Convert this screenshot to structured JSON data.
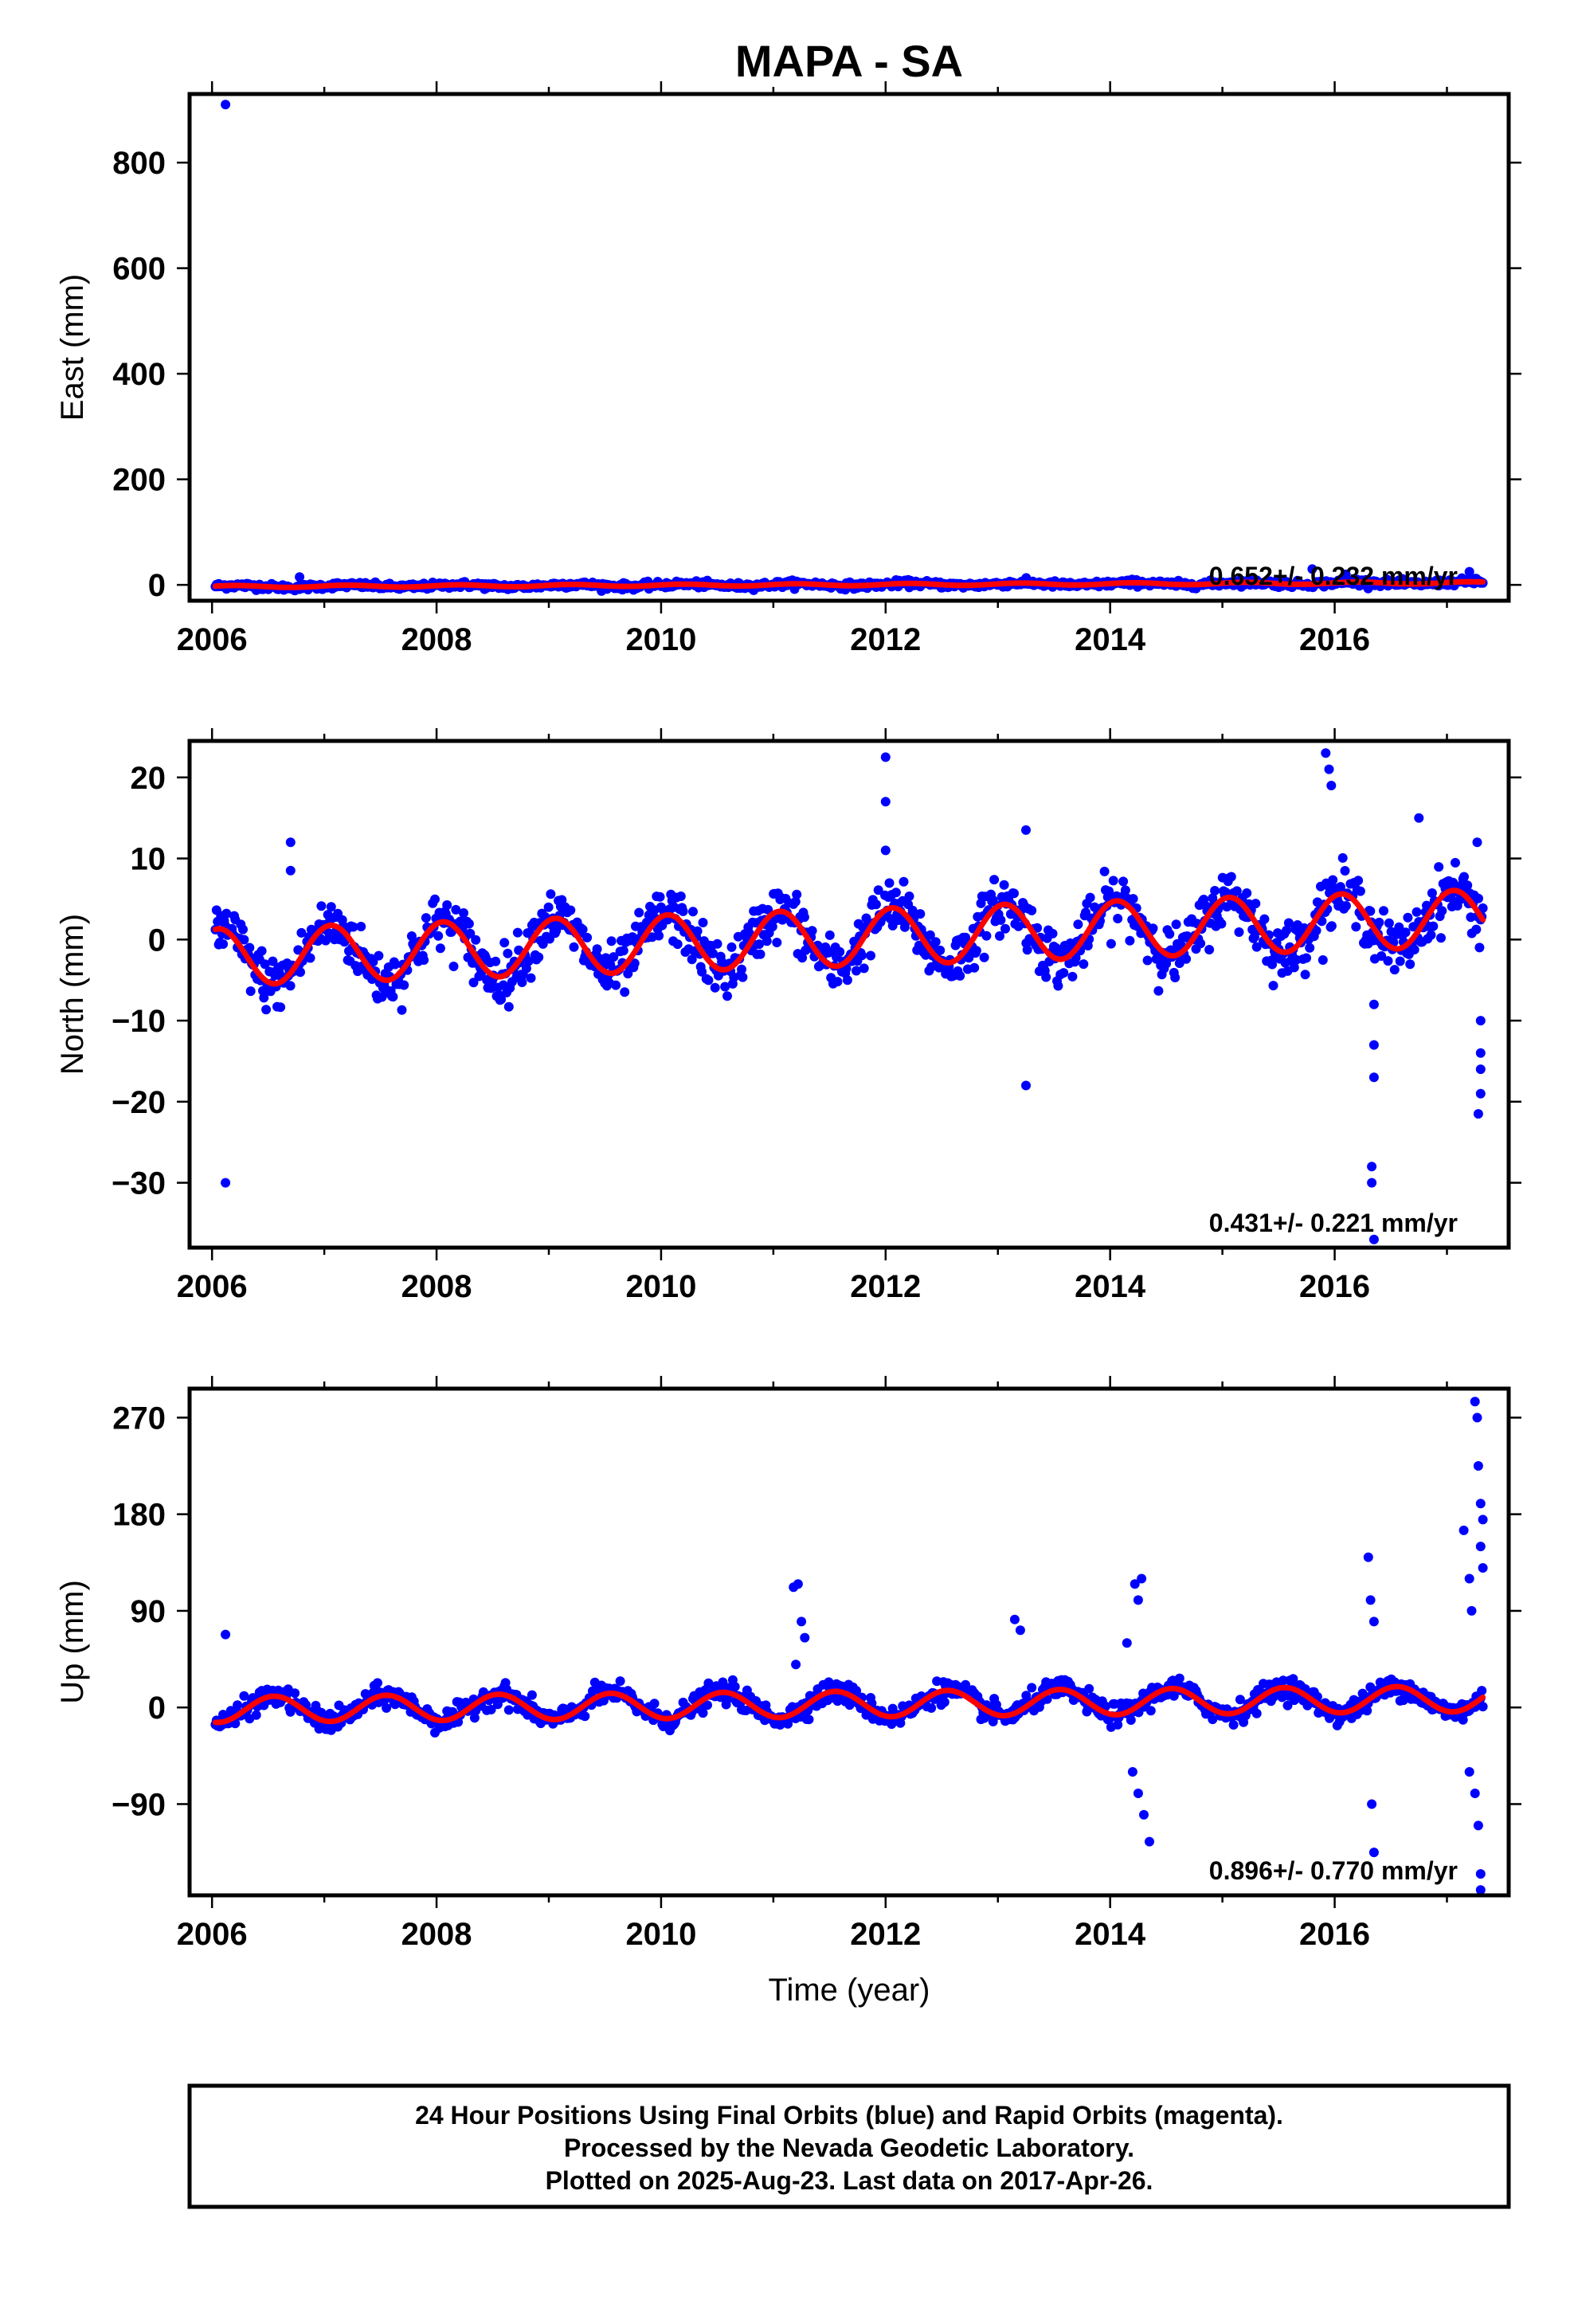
{
  "title": "MAPA - SA",
  "footer": {
    "lines": [
      "24 Hour Positions Using Final Orbits (blue) and Rapid Orbits (magenta).",
      "Processed by the Nevada Geodetic Laboratory.",
      "Plotted on 2025-Aug-23. Last data on 2017-Apr-26."
    ]
  },
  "colors": {
    "final_orbit_points": "#0000ff",
    "model_fit": "#ff0000",
    "frame": "#000000"
  },
  "chart_data": [
    {
      "type": "scatter",
      "name": "east",
      "ylabel": "East (mm)",
      "xlabel": "",
      "xlim": [
        2005.8,
        2017.55
      ],
      "ylim": [
        -30,
        930
      ],
      "xticks": [
        2006,
        2008,
        2010,
        2012,
        2014,
        2016
      ],
      "yticks": [
        0,
        200,
        400,
        600,
        800
      ],
      "rate_label": "0.652+/- 0.232 mm/yr",
      "legend": "none",
      "grid": false,
      "outliers": [
        [
          2006.12,
          910
        ],
        [
          2006.78,
          15
        ],
        [
          2015.8,
          30
        ],
        [
          2016.1,
          20
        ],
        [
          2017.2,
          25
        ]
      ],
      "model": {
        "offset": -3.3,
        "rate": 0.652,
        "t0": 2006.0,
        "amp": 2.0,
        "phase": 0.3
      },
      "noise_mm": 3,
      "x_range": [
        2006.03,
        2017.32
      ]
    },
    {
      "type": "scatter",
      "name": "north",
      "ylabel": "North (mm)",
      "xlabel": "",
      "xlim": [
        2005.8,
        2017.55
      ],
      "ylim": [
        -38,
        24.5
      ],
      "xticks": [
        2006,
        2008,
        2010,
        2012,
        2014,
        2016
      ],
      "yticks": [
        -30,
        -20,
        -10,
        0,
        10,
        20
      ],
      "rate_label": "0.431+/- 0.221 mm/yr",
      "legend": "none",
      "grid": false,
      "outliers": [
        [
          2006.12,
          -30
        ],
        [
          2006.7,
          12
        ],
        [
          2006.7,
          8.5
        ],
        [
          2012.0,
          22.5
        ],
        [
          2012.0,
          17
        ],
        [
          2012.0,
          11
        ],
        [
          2013.25,
          13.5
        ],
        [
          2013.25,
          -18
        ],
        [
          2015.92,
          23
        ],
        [
          2015.95,
          21
        ],
        [
          2015.97,
          19
        ],
        [
          2016.35,
          -8
        ],
        [
          2016.35,
          -13
        ],
        [
          2016.35,
          -17
        ],
        [
          2016.33,
          -28
        ],
        [
          2016.33,
          -30
        ],
        [
          2016.35,
          -37
        ],
        [
          2016.75,
          15
        ],
        [
          2017.27,
          12
        ],
        [
          2017.3,
          -10
        ],
        [
          2017.3,
          -14
        ],
        [
          2017.3,
          -16
        ],
        [
          2017.3,
          -19
        ],
        [
          2017.28,
          -21.5
        ]
      ],
      "model": {
        "offset": -2.2,
        "rate": 0.431,
        "t0": 2006.0,
        "amp": 3.5,
        "phase": 1.2
      },
      "noise_mm": 1.7,
      "x_range": [
        2006.03,
        2017.32
      ]
    },
    {
      "type": "scatter",
      "name": "up",
      "ylabel": "Up (mm)",
      "xlabel": "Time (year)",
      "xlim": [
        2005.8,
        2017.55
      ],
      "ylim": [
        -175,
        297
      ],
      "xticks": [
        2006,
        2008,
        2010,
        2012,
        2014,
        2016
      ],
      "yticks": [
        -90,
        0,
        90,
        180,
        270
      ],
      "rate_label": "0.896+/- 0.770 mm/yr",
      "legend": "none",
      "grid": false,
      "outliers": [
        [
          2006.12,
          68
        ],
        [
          2011.18,
          112
        ],
        [
          2011.22,
          115
        ],
        [
          2011.25,
          80
        ],
        [
          2011.28,
          65
        ],
        [
          2011.2,
          40
        ],
        [
          2013.15,
          82
        ],
        [
          2013.2,
          72
        ],
        [
          2014.22,
          115
        ],
        [
          2014.28,
          120
        ],
        [
          2014.25,
          100
        ],
        [
          2014.2,
          -60
        ],
        [
          2014.25,
          -80
        ],
        [
          2014.3,
          -100
        ],
        [
          2014.35,
          -125
        ],
        [
          2014.15,
          60
        ],
        [
          2016.3,
          140
        ],
        [
          2016.32,
          100
        ],
        [
          2016.35,
          80
        ],
        [
          2016.33,
          -90
        ],
        [
          2016.35,
          -135
        ],
        [
          2017.15,
          165
        ],
        [
          2017.2,
          120
        ],
        [
          2017.22,
          90
        ],
        [
          2017.25,
          285
        ],
        [
          2017.27,
          270
        ],
        [
          2017.28,
          225
        ],
        [
          2017.3,
          190
        ],
        [
          2017.32,
          175
        ],
        [
          2017.3,
          150
        ],
        [
          2017.32,
          130
        ],
        [
          2017.2,
          -60
        ],
        [
          2017.25,
          -80
        ],
        [
          2017.28,
          -110
        ],
        [
          2017.3,
          -155
        ],
        [
          2017.3,
          -170
        ]
      ],
      "model": {
        "offset": -2.0,
        "rate": 0.896,
        "t0": 2006.0,
        "amp": 12,
        "phase": -1.9
      },
      "noise_mm": 5,
      "x_range": [
        2006.03,
        2017.32
      ]
    }
  ]
}
